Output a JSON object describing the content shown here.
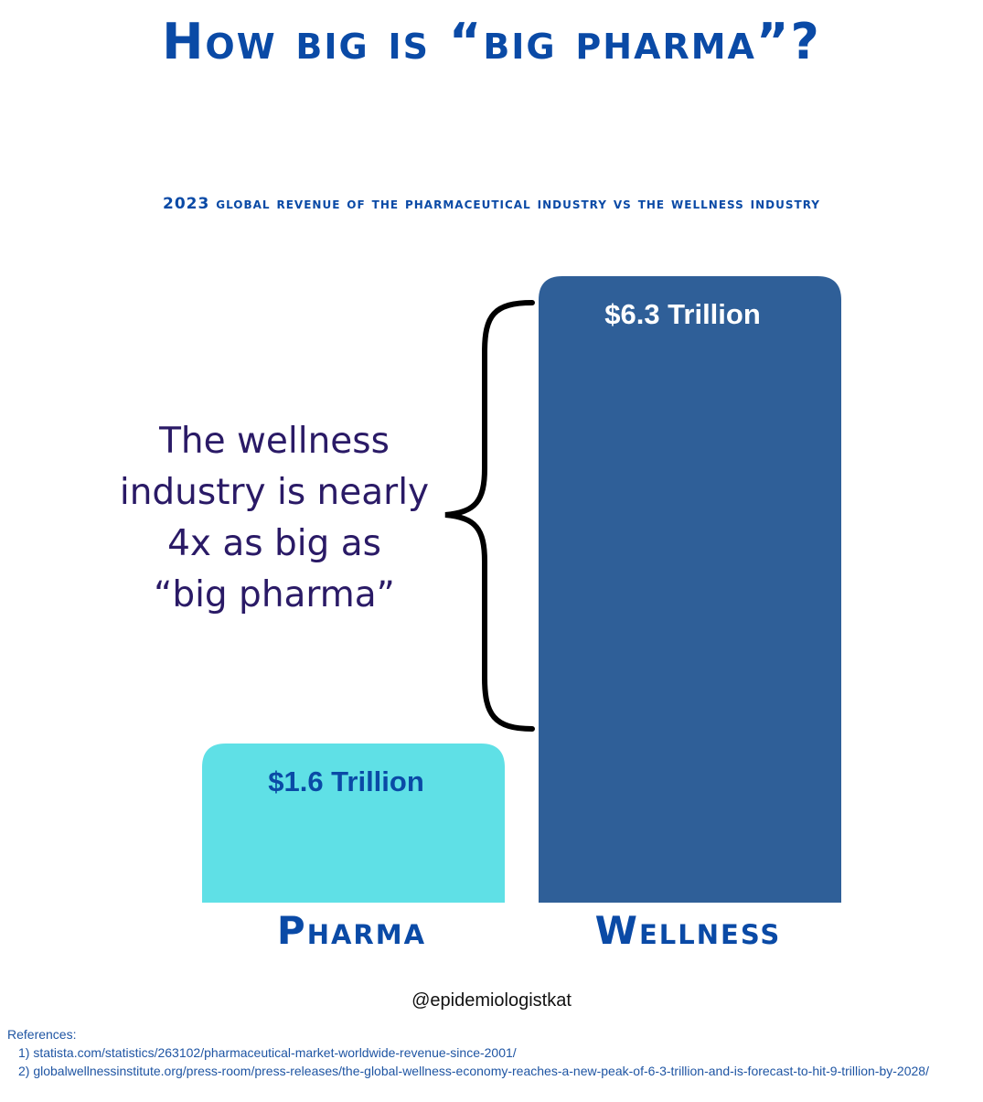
{
  "title": "How big is “big pharma”?",
  "subtitle": "2023 global revenue of the pharmaceutical industry vs the wellness industry",
  "annotation": {
    "lines": [
      "The wellness",
      "industry is nearly",
      "4x as big as",
      "“big pharma”"
    ]
  },
  "handle": "@epidemiologistkat",
  "references": {
    "heading": "References:",
    "items": [
      "1) statista.com/statistics/263102/pharmaceutical-market-worldwide-revenue-since-2001/",
      "2) globalwellnessinstitute.org/press-room/press-releases/the-global-wellness-economy-reaches-a-new-peak-of-6-3-trillion-and-is-forecast-to-hit-9-trillion-by-2028/"
    ]
  },
  "colors": {
    "title": "#0a4aa6",
    "pharma_bar": "#5fe0e6",
    "wellness_bar": "#2f5f98",
    "pharma_label": "#0a4aa6",
    "wellness_label": "#ffffff",
    "annotation": "#2a1a66"
  },
  "chart_data": {
    "type": "bar",
    "title": "2023 global revenue of the pharmaceutical industry vs the wellness industry",
    "categories": [
      "Pharma",
      "Wellness"
    ],
    "values": [
      1.6,
      6.3
    ],
    "value_labels": [
      "$1.6 Trillion",
      "$6.3 Trillion"
    ],
    "unit": "Trillion USD",
    "xlabel": "",
    "ylabel": "",
    "ylim": [
      0,
      6.3
    ],
    "grid": false
  }
}
